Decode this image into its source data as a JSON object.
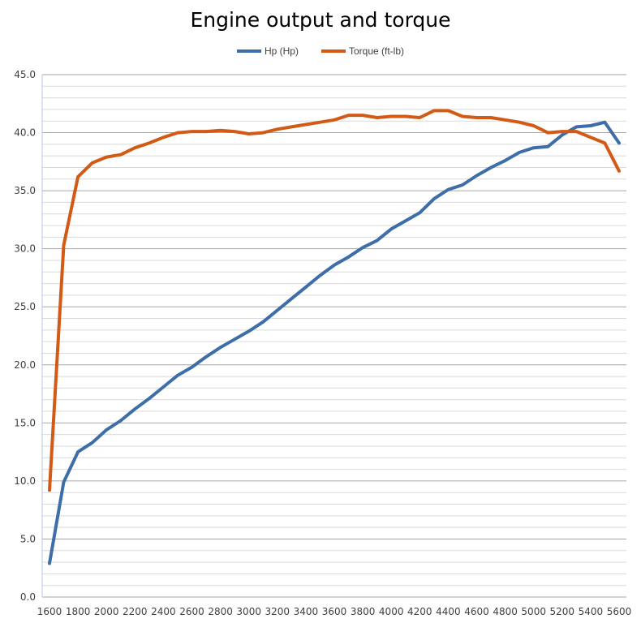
{
  "chart_data": {
    "type": "line",
    "title": "Engine output and torque",
    "xlabel": "",
    "ylabel": "",
    "x": [
      1600,
      1700,
      1800,
      1900,
      2000,
      2100,
      2200,
      2300,
      2400,
      2500,
      2600,
      2700,
      2800,
      2900,
      3000,
      3100,
      3200,
      3300,
      3400,
      3500,
      3600,
      3700,
      3800,
      3900,
      4000,
      4100,
      4200,
      4300,
      4400,
      4500,
      4600,
      4700,
      4800,
      4900,
      5000,
      5100,
      5200,
      5300,
      5400,
      5500,
      5600
    ],
    "xticks": [
      "1600",
      "1800",
      "2000",
      "2200",
      "2400",
      "2600",
      "2800",
      "3000",
      "3200",
      "3400",
      "3600",
      "3800",
      "4000",
      "4200",
      "4400",
      "4600",
      "4800",
      "5000",
      "5200",
      "5400",
      "5600"
    ],
    "yticks": [
      "0.0",
      "5.0",
      "10.0",
      "15.0",
      "20.0",
      "25.0",
      "30.0",
      "35.0",
      "40.0",
      "45.0"
    ],
    "xlim": [
      1600,
      5600
    ],
    "ylim": [
      0,
      45
    ],
    "grid": true,
    "legend": "top",
    "series": [
      {
        "name": "Hp (Hp)",
        "color": "#3d6ea8",
        "values": [
          2.9,
          9.9,
          12.5,
          13.3,
          14.4,
          15.2,
          16.2,
          17.1,
          18.1,
          19.1,
          19.8,
          20.7,
          21.5,
          22.2,
          22.9,
          23.7,
          24.7,
          25.7,
          26.7,
          27.7,
          28.6,
          29.3,
          30.1,
          30.7,
          31.7,
          32.4,
          33.1,
          34.3,
          35.1,
          35.5,
          36.3,
          37.0,
          37.6,
          38.3,
          38.7,
          38.8,
          39.8,
          40.5,
          40.6,
          40.9,
          39.1
        ]
      },
      {
        "name": "Torque (ft-lb)",
        "color": "#d35a14",
        "values": [
          9.2,
          30.3,
          36.2,
          37.4,
          37.9,
          38.1,
          38.7,
          39.1,
          39.6,
          40.0,
          40.1,
          40.1,
          40.2,
          40.1,
          39.9,
          40.0,
          40.3,
          40.5,
          40.7,
          40.9,
          41.1,
          41.5,
          41.5,
          41.3,
          41.4,
          41.4,
          41.3,
          41.9,
          41.9,
          41.4,
          41.3,
          41.3,
          41.1,
          40.9,
          40.6,
          40.0,
          40.1,
          40.1,
          39.6,
          39.1,
          36.7
        ]
      }
    ]
  }
}
